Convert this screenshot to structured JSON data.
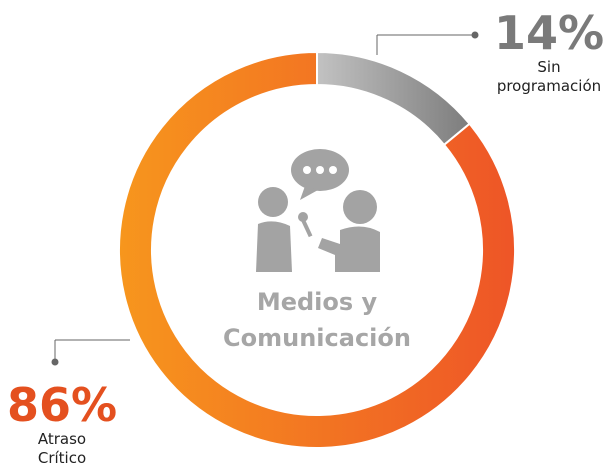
{
  "chart_data": {
    "type": "pie",
    "donut": true,
    "categories": [
      "Sin programación",
      "Atraso Crítico"
    ],
    "values": [
      14,
      86
    ],
    "value_labels": [
      "14%",
      "86%"
    ],
    "colors": [
      [
        "#c2c2c2",
        "#7d7d7d"
      ],
      [
        "#f7961d",
        "#ee5527"
      ]
    ],
    "label_colors": [
      "#7a7a7a",
      "#e4501f"
    ],
    "center_label": "Medios y Comunicación"
  }
}
